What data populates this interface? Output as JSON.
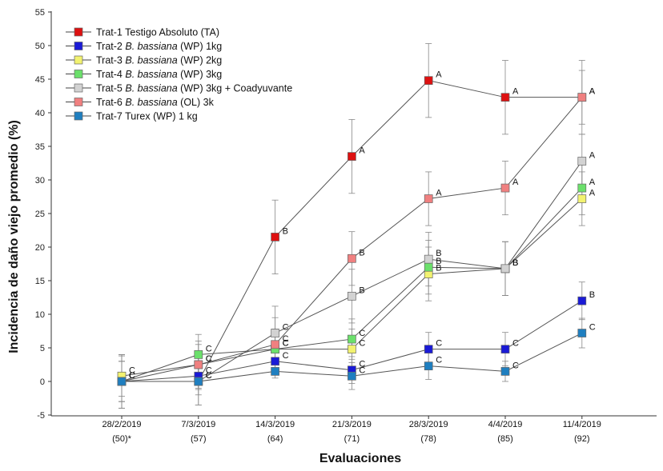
{
  "chart_data": {
    "type": "line",
    "xlabel": "Evaluaciones",
    "ylabel": "Incidencia de daño viejo promedio (%)",
    "ylim": [
      -5,
      55
    ],
    "yticks": [
      -5,
      0,
      5,
      10,
      15,
      20,
      25,
      30,
      35,
      40,
      45,
      50,
      55
    ],
    "categories": [
      "28/2/2019",
      "7/3/2019",
      "14/3/2019",
      "21/3/2019",
      "28/3/2019",
      "4/4/2019",
      "11/4/2019"
    ],
    "category_sublabels": [
      "(50)*",
      "(57)",
      "(64)",
      "(71)",
      "(78)",
      "(85)",
      "(92)"
    ],
    "legend_position": "top-left",
    "series": [
      {
        "name": "Trat-1",
        "desc_plain": "Testigo Absoluto (TA)",
        "desc_italic": "",
        "color": "#dd1111",
        "values": [
          0,
          0,
          21.5,
          33.5,
          44.8,
          42.3,
          42.3
        ],
        "errors": [
          4,
          3.5,
          5.5,
          5.5,
          5.5,
          5.5,
          5.5
        ],
        "labels": [
          "C",
          "C",
          "B",
          "A",
          "A",
          "A",
          "A"
        ]
      },
      {
        "name": "Trat-2",
        "desc_plain": " (WP) 1kg",
        "desc_italic": "B. bassiana",
        "color": "#1a1ad6",
        "values": [
          0,
          0.8,
          3.0,
          1.7,
          4.8,
          4.8,
          12.0
        ],
        "errors": [
          3,
          2,
          2,
          2,
          2.5,
          2.5,
          2.8
        ],
        "labels": [
          "C",
          "C",
          "C",
          "C",
          "C",
          "C",
          "B"
        ]
      },
      {
        "name": "Trat-3",
        "desc_plain": " (WP) 2kg",
        "desc_italic": "B. bassiana",
        "color": "#f2f270",
        "values": [
          0.8,
          2.5,
          4.8,
          4.8,
          16.0,
          16.8,
          27.2
        ],
        "errors": [
          3,
          3,
          3,
          3,
          4,
          4,
          4
        ],
        "labels": [
          "C",
          "C",
          "C",
          "C",
          "B",
          "B",
          "A"
        ]
      },
      {
        "name": "Trat-4",
        "desc_plain": " (WP) 3kg",
        "desc_italic": "B. bassiana",
        "color": "#6be06b",
        "values": [
          0,
          4.0,
          4.8,
          6.3,
          17.0,
          16.8,
          28.8
        ],
        "errors": [
          3,
          3,
          3,
          3,
          4,
          4,
          4
        ],
        "labels": [
          "C",
          "C",
          "C",
          "C",
          "B",
          "B",
          "A"
        ]
      },
      {
        "name": "Trat-5",
        "desc_plain": " (WP) 3kg + Coadyuvante",
        "desc_italic": "B. bassiana",
        "color": "#d2d2d2",
        "values": [
          0,
          0,
          7.2,
          12.7,
          18.2,
          16.8,
          32.8
        ],
        "errors": [
          4,
          3.5,
          4,
          4,
          4,
          4,
          4
        ],
        "labels": [
          "C",
          "C",
          "C",
          "B",
          "B",
          "B",
          "A"
        ]
      },
      {
        "name": "Trat-6",
        "desc_plain": " (OL) 3k",
        "desc_italic": "B. bassiana",
        "color": "#f08080",
        "values": [
          0,
          2.5,
          5.5,
          18.3,
          27.2,
          28.8,
          42.3
        ],
        "errors": [
          4,
          3.5,
          4,
          4,
          4,
          4,
          4
        ],
        "labels": [
          "C",
          "C",
          "C",
          "B",
          "A",
          "A",
          "A"
        ]
      },
      {
        "name": "Trat-7",
        "desc_plain": "Turex (WP) 1 kg",
        "desc_italic": "",
        "color": "#1f7fc0",
        "values": [
          0,
          0,
          1.5,
          0.8,
          2.3,
          1.5,
          7.2
        ],
        "errors": [
          3,
          2,
          1,
          2,
          2,
          1.5,
          2.2
        ],
        "labels": [
          "",
          "",
          "",
          "C",
          "C",
          "C",
          "C"
        ]
      }
    ]
  }
}
